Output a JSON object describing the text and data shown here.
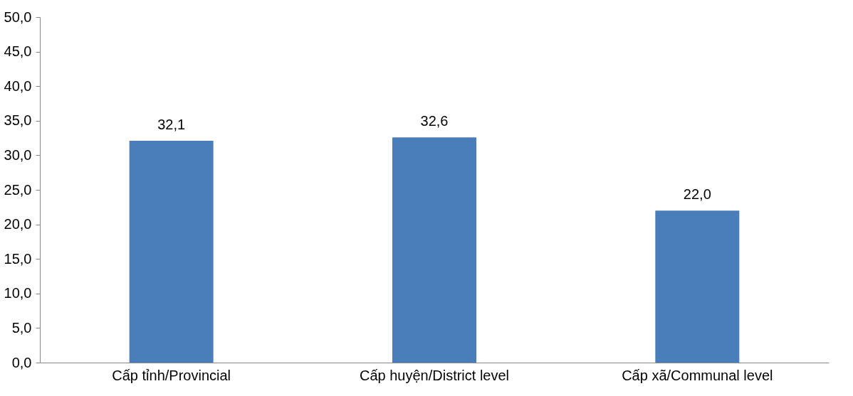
{
  "chart_data": {
    "type": "bar",
    "categories": [
      "Cấp tỉnh/Provincial",
      "Cấp huyện/District level",
      "Cấp xã/Communal level"
    ],
    "values": [
      32.1,
      32.6,
      22.0
    ],
    "value_labels": [
      "32,1",
      "32,6",
      "22,0"
    ],
    "color": "#4a7ebb",
    "ylim": [
      0,
      50
    ],
    "yticks": [
      {
        "value": 0,
        "label": "0,0"
      },
      {
        "value": 5,
        "label": "5,0"
      },
      {
        "value": 10,
        "label": "10,0"
      },
      {
        "value": 15,
        "label": "15,0"
      },
      {
        "value": 20,
        "label": "20,0"
      },
      {
        "value": 25,
        "label": "25,0"
      },
      {
        "value": 30,
        "label": "30,0"
      },
      {
        "value": 35,
        "label": "35,0"
      },
      {
        "value": 40,
        "label": "40,0"
      },
      {
        "value": 45,
        "label": "45,0"
      },
      {
        "value": 50,
        "label": "50,0"
      }
    ],
    "grid": false
  }
}
